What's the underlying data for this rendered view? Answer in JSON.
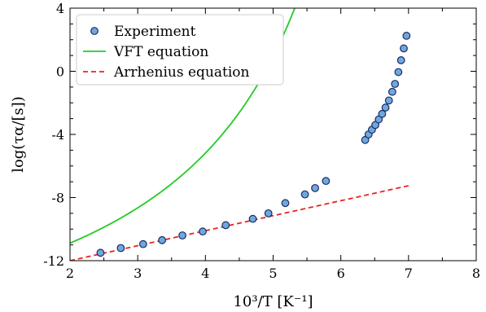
{
  "chart_data": {
    "type": "scatter",
    "xlabel": "10³/T [K⁻¹]",
    "ylabel": "log(τα/[s])",
    "xlim": [
      2,
      8
    ],
    "ylim": [
      -12,
      4
    ],
    "xticks": [
      2,
      3,
      4,
      5,
      6,
      7,
      8
    ],
    "yticks": [
      -12,
      -8,
      -4,
      0,
      4
    ],
    "grid": false,
    "legend_position": "top-left",
    "series": [
      {
        "name": "Experiment",
        "kind": "markers",
        "color": "#6fa8dc",
        "points": [
          [
            2.45,
            -11.5
          ],
          [
            2.75,
            -11.2
          ],
          [
            3.08,
            -10.95
          ],
          [
            3.36,
            -10.7
          ],
          [
            3.66,
            -10.4
          ],
          [
            3.96,
            -10.15
          ],
          [
            4.3,
            -9.75
          ],
          [
            4.7,
            -9.35
          ],
          [
            4.93,
            -9.0
          ],
          [
            5.18,
            -8.35
          ],
          [
            5.47,
            -7.8
          ],
          [
            5.62,
            -7.4
          ],
          [
            5.78,
            -6.95
          ],
          [
            6.36,
            -4.35
          ],
          [
            6.41,
            -4.0
          ],
          [
            6.46,
            -3.7
          ],
          [
            6.51,
            -3.4
          ],
          [
            6.56,
            -3.05
          ],
          [
            6.61,
            -2.7
          ],
          [
            6.66,
            -2.3
          ],
          [
            6.71,
            -1.85
          ],
          [
            6.76,
            -1.3
          ],
          [
            6.8,
            -0.8
          ],
          [
            6.85,
            -0.05
          ],
          [
            6.89,
            0.7
          ],
          [
            6.93,
            1.45
          ],
          [
            6.97,
            2.25
          ]
        ]
      },
      {
        "name": "VFT equation",
        "kind": "line",
        "color": "#22cc22",
        "model": {
          "logtau0": -13.6,
          "D_T0": 1000,
          "T0": 131.2
        },
        "x_range": [
          2.0,
          7.0
        ]
      },
      {
        "name": "Arrhenius equation",
        "kind": "dashed-line",
        "color": "#e8241e",
        "points": [
          [
            2.0,
            -12.0
          ],
          [
            7.0,
            -7.25
          ]
        ]
      }
    ]
  }
}
